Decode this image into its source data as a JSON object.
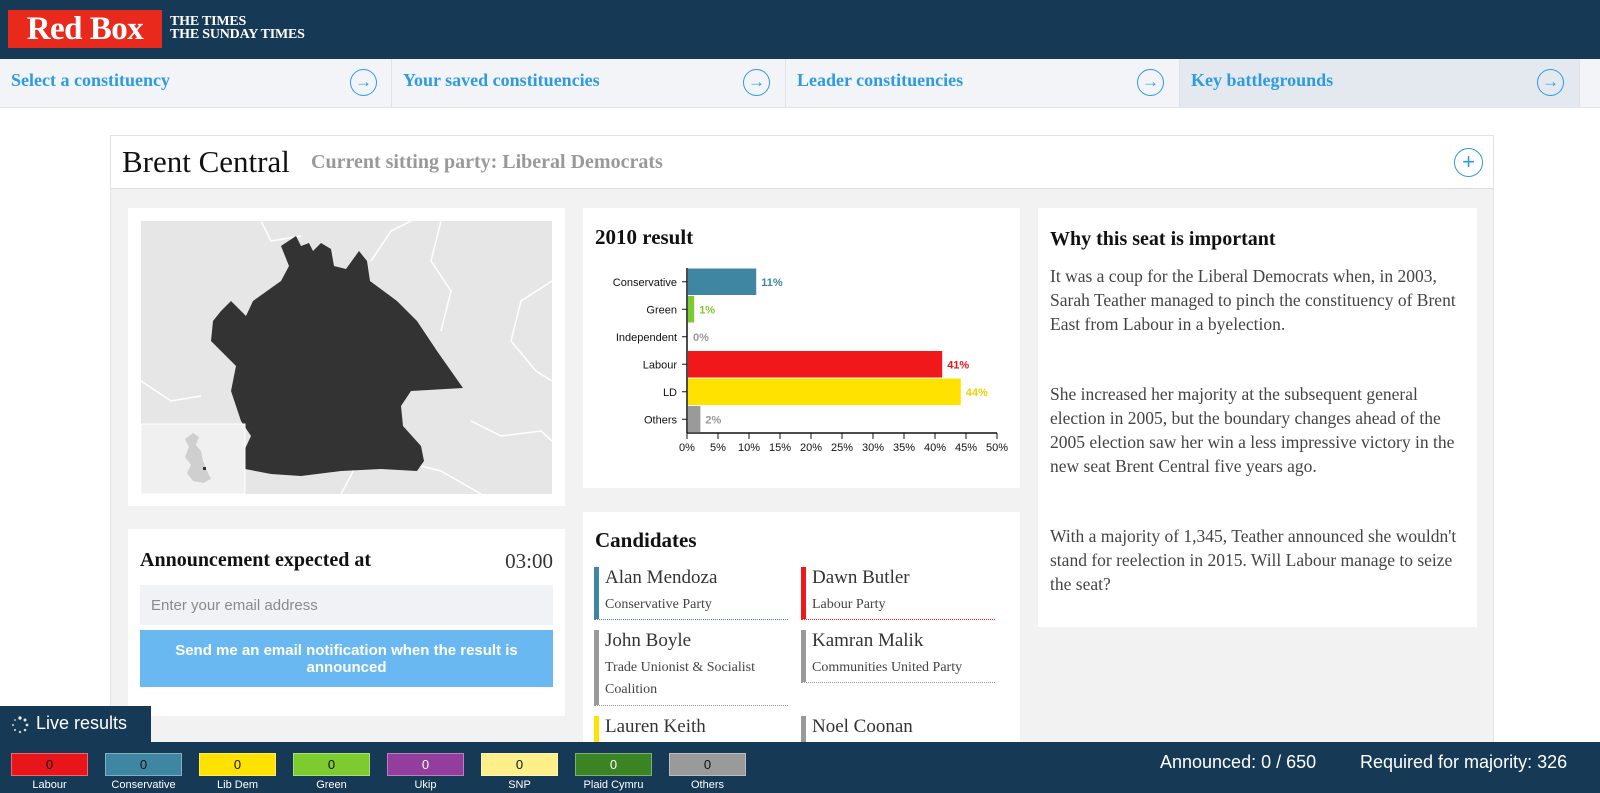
{
  "header": {
    "logo_text": "Red Box",
    "times_line1": "THE TIMES",
    "times_line2": "THE SUNDAY TIMES"
  },
  "nav": {
    "items": [
      {
        "label": "Select a constituency",
        "icon": "arrow-right-circle-icon"
      },
      {
        "label": "Your saved constituencies",
        "icon": "arrow-right-circle-icon"
      },
      {
        "label": "Leader constituencies",
        "icon": "arrow-right-circle-icon"
      },
      {
        "label": "Key battlegrounds",
        "icon": "arrow-right-circle-icon",
        "active": true
      }
    ]
  },
  "constituency": {
    "name": "Brent Central",
    "sitting_party": "Current sitting party: Liberal Democrats",
    "add_icon": "plus-circle-icon"
  },
  "announcement": {
    "label": "Announcement expected at",
    "time": "03:00",
    "email_placeholder": "Enter your email address",
    "button_label": "Send me an email notification when the result is announced"
  },
  "result": {
    "title": "2010 result",
    "chart_data": {
      "type": "bar",
      "orientation": "horizontal",
      "categories": [
        "Conservative",
        "Green",
        "Independent",
        "Labour",
        "LD",
        "Others"
      ],
      "values": [
        11,
        1,
        0,
        41,
        44,
        2
      ],
      "data_labels": [
        "11%",
        "1%",
        "0%",
        "41%",
        "44%",
        "2%"
      ],
      "colors": [
        "#3f86a3",
        "#7dcb2f",
        "#aaaaaa",
        "#f0181a",
        "#ffe200",
        "#9a9a9a"
      ],
      "label_colors": [
        "#3f86a3",
        "#7dcb2f",
        "#999999",
        "#e8161a",
        "#f0d000",
        "#999999"
      ],
      "x_ticks": [
        "0%",
        "5%",
        "10%",
        "15%",
        "20%",
        "25%",
        "30%",
        "35%",
        "40%",
        "45%",
        "50%"
      ],
      "xlim": [
        0,
        50
      ],
      "grid": false
    }
  },
  "candidates": {
    "title": "Candidates",
    "items": [
      {
        "name": "Alan Mendoza",
        "party": "Conservative Party",
        "color": "#3f86a3"
      },
      {
        "name": "Dawn Butler",
        "party": "Labour Party",
        "color": "#f0181a"
      },
      {
        "name": "John Boyle",
        "party": "Trade Unionist & Socialist Coalition",
        "color": "#9a9a9a"
      },
      {
        "name": "Kamran Malik",
        "party": "Communities United Party",
        "color": "#9a9a9a"
      },
      {
        "name": "Lauren Keith",
        "party": "",
        "color": "#ffe200"
      },
      {
        "name": "Noel Coonan",
        "party": "",
        "color": "#9a9a9a"
      }
    ]
  },
  "why": {
    "title": "Why this seat is important",
    "paragraphs": [
      "It was a coup for the Liberal Democrats when, in 2003, Sarah Teather managed to pinch the constituency of Brent East from Labour in a byelection.",
      "She increased her majority at the subsequent general election in 2005, but the boundary changes ahead of the 2005 election saw her win a less impressive victory in the new seat Brent Central five years ago.",
      "With a majority of 1,345, Teather announced she wouldn't stand for reelection in 2015. Will Labour manage to seize the seat?"
    ]
  },
  "live_results": {
    "label": "Live results",
    "icon": "spinner-icon"
  },
  "results_bar": {
    "parties": [
      {
        "name": "Labour",
        "seats": "0",
        "color": "#e8161a",
        "text_color": "#111111"
      },
      {
        "name": "Conservative",
        "seats": "0",
        "color": "#3f86a3",
        "text_color": "#111111"
      },
      {
        "name": "Lib Dem",
        "seats": "0",
        "color": "#ffe200",
        "text_color": "#111111"
      },
      {
        "name": "Green",
        "seats": "0",
        "color": "#7dcb2f",
        "text_color": "#111111"
      },
      {
        "name": "Ukip",
        "seats": "0",
        "color": "#933e9c",
        "text_color": "#ffffff"
      },
      {
        "name": "SNP",
        "seats": "0",
        "color": "#fdf08a",
        "text_color": "#111111"
      },
      {
        "name": "Plaid Cymru",
        "seats": "0",
        "color": "#3b8424",
        "text_color": "#ffffff"
      },
      {
        "name": "Others",
        "seats": "0",
        "color": "#9a9a9a",
        "text_color": "#111111"
      }
    ],
    "announced": "Announced: 0 / 650",
    "majority": "Required for majority: 326"
  }
}
